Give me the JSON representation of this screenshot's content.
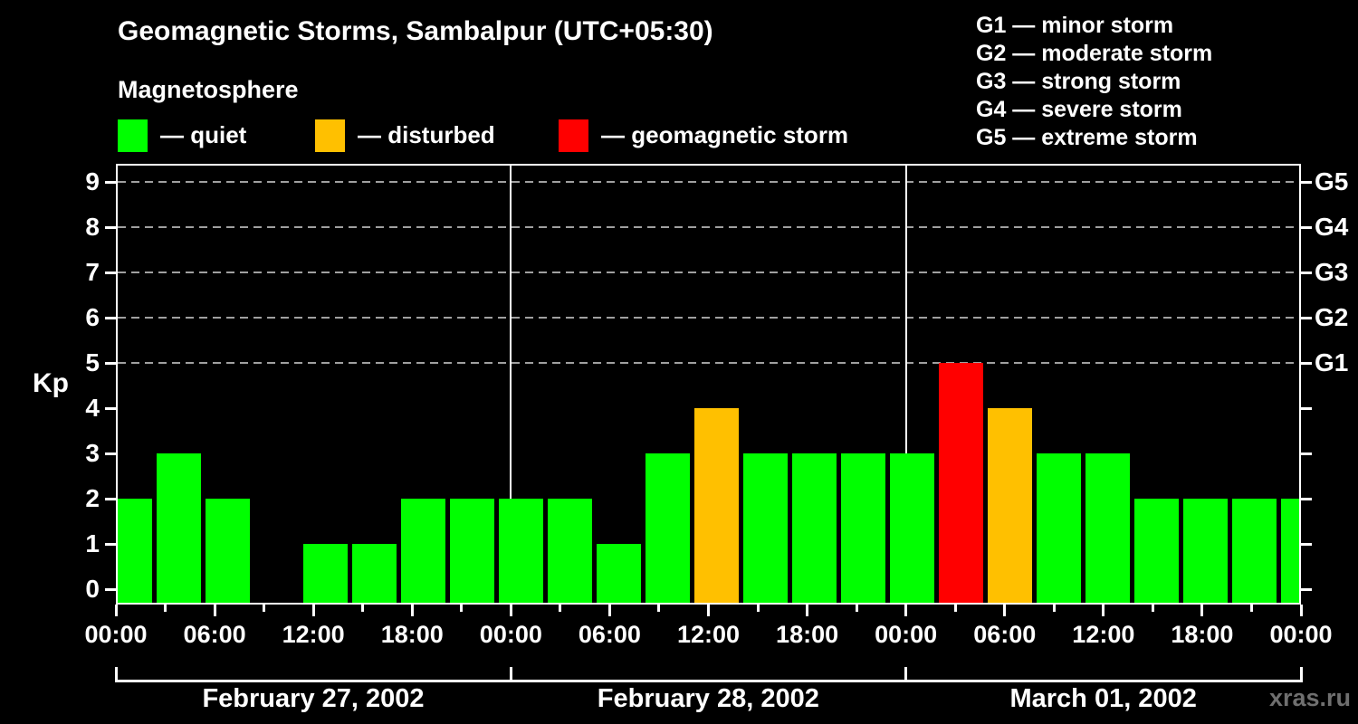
{
  "header": {
    "title": "Geomagnetic Storms, Sambalpur (UTC+05:30)",
    "subtitle": "Magnetosphere"
  },
  "legend": {
    "items": [
      {
        "key": "quiet",
        "label": "— quiet"
      },
      {
        "key": "disturbed",
        "label": "— disturbed"
      },
      {
        "key": "storm",
        "label": "— geomagnetic storm"
      }
    ]
  },
  "storm_scale_legend": {
    "items": [
      "G1 — minor storm",
      "G2 — moderate storm",
      "G3 — strong storm",
      "G4 — severe storm",
      "G5 — extreme storm"
    ]
  },
  "watermark": "xras.ru",
  "colors": {
    "quiet": "#00ff00",
    "disturbed": "#ffc000",
    "storm": "#ff0000",
    "axis": "#ffffff",
    "grid": "#a0a0a0",
    "background": "#000000",
    "watermark": "#6f6f6f"
  },
  "chart_data": {
    "type": "bar",
    "title": "Geomagnetic Storms, Sambalpur (UTC+05:30)",
    "ylabel": "Kp",
    "ylim": [
      0,
      9
    ],
    "y_ticks": [
      0,
      1,
      2,
      3,
      4,
      5,
      6,
      7,
      8,
      9
    ],
    "dashed_grid_levels": [
      5,
      6,
      7,
      8,
      9
    ],
    "right_axis_labels": [
      {
        "label": "G1",
        "kp": 5
      },
      {
        "label": "G2",
        "kp": 6
      },
      {
        "label": "G3",
        "kp": 7
      },
      {
        "label": "G4",
        "kp": 8
      },
      {
        "label": "G5",
        "kp": 9
      }
    ],
    "x_tick_labels": [
      "00:00",
      "06:00",
      "12:00",
      "18:00",
      "00:00",
      "06:00",
      "12:00",
      "18:00",
      "00:00",
      "06:00",
      "12:00",
      "18:00",
      "00:00"
    ],
    "interval_hours": 3,
    "days": [
      {
        "label": "February 27, 2002",
        "kp_values": [
          2,
          3,
          2,
          0,
          1,
          1,
          2,
          2
        ]
      },
      {
        "label": "February 28, 2002",
        "kp_values": [
          2,
          2,
          1,
          3,
          4,
          3,
          3,
          3
        ]
      },
      {
        "label": "March 01, 2002",
        "kp_values": [
          3,
          5,
          4,
          3,
          3,
          2,
          2,
          2
        ]
      }
    ],
    "trailing_clipped_bar_kp": 2,
    "color_rule": {
      "quiet_kp_max": 3,
      "disturbed_kp": 4,
      "storm_kp_min": 5
    },
    "legend_position": "top-left",
    "grid": "dashed horizontal at G-levels only"
  }
}
